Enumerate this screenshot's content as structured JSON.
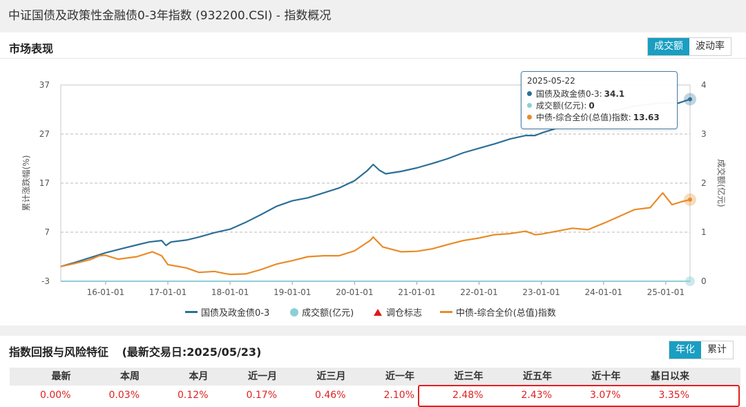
{
  "page_title": "中证国债及政策性金融债0-3年指数 (932200.CSI) - 指数概况",
  "market": {
    "title": "市场表现",
    "buttons": [
      {
        "label": "成交额",
        "active": true
      },
      {
        "label": "波动率",
        "active": false
      }
    ]
  },
  "chart_data": {
    "type": "line",
    "left_axis": {
      "label": "累计涨跌幅(%)",
      "ticks": [
        "37",
        "27",
        "17",
        "7",
        "-3"
      ],
      "range": [
        -3,
        37
      ]
    },
    "right_axis": {
      "label": "成交额(亿元)",
      "ticks": [
        "4",
        "3",
        "2",
        "1",
        "0"
      ],
      "range": [
        0,
        4
      ]
    },
    "x_ticks": [
      "16-01-01",
      "17-01-01",
      "18-01-01",
      "19-01-01",
      "20-01-01",
      "21-01-01",
      "22-01-01",
      "23-01-01",
      "24-01-01",
      "25-01-01"
    ],
    "x_range": [
      2015.28,
      2025.39
    ],
    "grid": true,
    "series": [
      {
        "name": "国债及政金债0-3",
        "color": "#2c6f97",
        "points": [
          [
            2015.28,
            0.0
          ],
          [
            2015.5,
            0.8
          ],
          [
            2015.75,
            1.8
          ],
          [
            2016.0,
            2.8
          ],
          [
            2016.25,
            3.6
          ],
          [
            2016.5,
            4.4
          ],
          [
            2016.7,
            5.0
          ],
          [
            2016.9,
            5.3
          ],
          [
            2016.97,
            4.3
          ],
          [
            2017.05,
            5.0
          ],
          [
            2017.3,
            5.4
          ],
          [
            2017.5,
            6.0
          ],
          [
            2017.75,
            6.9
          ],
          [
            2018.0,
            7.6
          ],
          [
            2018.25,
            9.0
          ],
          [
            2018.5,
            10.6
          ],
          [
            2018.75,
            12.3
          ],
          [
            2019.0,
            13.4
          ],
          [
            2019.25,
            14.0
          ],
          [
            2019.5,
            15.0
          ],
          [
            2019.75,
            16.0
          ],
          [
            2020.0,
            17.5
          ],
          [
            2020.2,
            19.5
          ],
          [
            2020.3,
            20.8
          ],
          [
            2020.4,
            19.6
          ],
          [
            2020.5,
            18.9
          ],
          [
            2020.75,
            19.4
          ],
          [
            2021.0,
            20.1
          ],
          [
            2021.25,
            21.0
          ],
          [
            2021.5,
            22.0
          ],
          [
            2021.75,
            23.2
          ],
          [
            2022.0,
            24.1
          ],
          [
            2022.25,
            25.0
          ],
          [
            2022.5,
            26.0
          ],
          [
            2022.75,
            26.7
          ],
          [
            2022.9,
            26.7
          ],
          [
            2023.0,
            27.2
          ],
          [
            2023.25,
            28.2
          ],
          [
            2023.5,
            29.4
          ],
          [
            2023.75,
            30.3
          ],
          [
            2024.0,
            31.2
          ],
          [
            2024.25,
            32.0
          ],
          [
            2024.5,
            32.7
          ],
          [
            2024.75,
            33.1
          ],
          [
            2025.0,
            33.4
          ],
          [
            2025.2,
            33.3
          ],
          [
            2025.39,
            34.1
          ]
        ]
      },
      {
        "name": "中债-综合全价(总值)指数",
        "color": "#e98b27",
        "points": [
          [
            2015.28,
            0.0
          ],
          [
            2015.5,
            0.6
          ],
          [
            2015.75,
            1.4
          ],
          [
            2015.9,
            2.2
          ],
          [
            2016.0,
            2.3
          ],
          [
            2016.2,
            1.5
          ],
          [
            2016.5,
            2.0
          ],
          [
            2016.75,
            3.0
          ],
          [
            2016.9,
            2.2
          ],
          [
            2017.0,
            0.4
          ],
          [
            2017.3,
            -0.3
          ],
          [
            2017.5,
            -1.2
          ],
          [
            2017.75,
            -1.0
          ],
          [
            2017.9,
            -1.4
          ],
          [
            2018.0,
            -1.6
          ],
          [
            2018.25,
            -1.5
          ],
          [
            2018.5,
            -0.6
          ],
          [
            2018.75,
            0.5
          ],
          [
            2019.0,
            1.2
          ],
          [
            2019.25,
            2.0
          ],
          [
            2019.5,
            2.2
          ],
          [
            2019.75,
            2.2
          ],
          [
            2020.0,
            3.2
          ],
          [
            2020.25,
            5.3
          ],
          [
            2020.3,
            6.0
          ],
          [
            2020.45,
            4.0
          ],
          [
            2020.75,
            3.0
          ],
          [
            2021.0,
            3.1
          ],
          [
            2021.25,
            3.6
          ],
          [
            2021.5,
            4.5
          ],
          [
            2021.75,
            5.3
          ],
          [
            2022.0,
            5.8
          ],
          [
            2022.25,
            6.5
          ],
          [
            2022.5,
            6.7
          ],
          [
            2022.75,
            7.2
          ],
          [
            2022.9,
            6.5
          ],
          [
            2023.0,
            6.6
          ],
          [
            2023.25,
            7.2
          ],
          [
            2023.5,
            7.8
          ],
          [
            2023.75,
            7.5
          ],
          [
            2024.0,
            8.8
          ],
          [
            2024.25,
            10.2
          ],
          [
            2024.5,
            11.6
          ],
          [
            2024.75,
            12.0
          ],
          [
            2024.95,
            15.0
          ],
          [
            2025.1,
            12.6
          ],
          [
            2025.25,
            13.2
          ],
          [
            2025.39,
            13.63
          ]
        ]
      },
      {
        "name": "成交额(亿元)",
        "color": "#8ccfd8",
        "points": [
          [
            2015.28,
            0
          ],
          [
            2025.39,
            0
          ]
        ]
      }
    ],
    "legend": [
      {
        "name": "国债及政金债0-3",
        "kind": "line",
        "color": "#2c6f97"
      },
      {
        "name": "成交额(亿元)",
        "kind": "dot",
        "color": "#8ccfd8"
      },
      {
        "name": "调仓标志",
        "kind": "triangle",
        "color": "#e21818"
      },
      {
        "name": "中债-综合全价(总值)指数",
        "kind": "line",
        "color": "#e98b27"
      }
    ],
    "tooltip": {
      "date": "2025-05-22",
      "rows": [
        {
          "label": "国债及政金债0-3:",
          "value": "34.1",
          "color": "#2c6f97"
        },
        {
          "label": "成交额(亿元):",
          "value": "0",
          "color": "#8ccfd8"
        },
        {
          "label": "中债-综合全价(总值)指数:",
          "value": "13.63",
          "color": "#e98b27"
        }
      ]
    }
  },
  "returns": {
    "title": "指数回报与风险特征",
    "latest_date": "(最新交易日:2025/05/23)",
    "buttons": [
      {
        "label": "年化",
        "active": true
      },
      {
        "label": "累计",
        "active": false
      }
    ],
    "headers": [
      "最新",
      "本周",
      "本月",
      "近一月",
      "近三月",
      "近一年",
      "近三年",
      "近五年",
      "近十年",
      "基日以来"
    ],
    "values": [
      "0.00%",
      "0.03%",
      "0.12%",
      "0.17%",
      "0.46%",
      "2.10%",
      "2.48%",
      "2.43%",
      "3.07%",
      "3.35%"
    ]
  }
}
